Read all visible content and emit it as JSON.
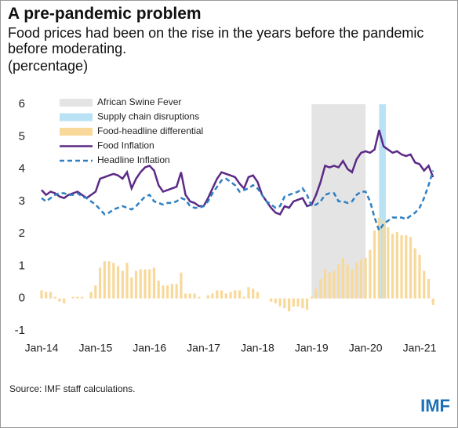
{
  "chart_data": {
    "type": "combo",
    "title": "A pre-pandemic problem",
    "subtitle": "Food prices had been on the rise in the years before the pandemic before moderating.",
    "y_label": "(percentage)",
    "source": "Source: IMF staff calculations.",
    "logo": "IMF",
    "categories": [
      "Jan-14",
      null,
      null,
      null,
      null,
      null,
      null,
      null,
      null,
      null,
      null,
      null,
      "Jan-15",
      null,
      null,
      null,
      null,
      null,
      null,
      null,
      null,
      null,
      null,
      null,
      "Jan-16",
      null,
      null,
      null,
      null,
      null,
      null,
      null,
      null,
      null,
      null,
      null,
      "Jan-17",
      null,
      null,
      null,
      null,
      null,
      null,
      null,
      null,
      null,
      null,
      null,
      "Jan-18",
      null,
      null,
      null,
      null,
      null,
      null,
      null,
      null,
      null,
      null,
      null,
      "Jan-19",
      null,
      null,
      null,
      null,
      null,
      null,
      null,
      null,
      null,
      null,
      null,
      "Jan-20",
      null,
      null,
      null,
      null,
      null,
      null,
      null,
      null,
      null,
      null,
      null,
      "Jan-21",
      null,
      null,
      null
    ],
    "ylim": [
      -1,
      6
    ],
    "yticks": [
      -1,
      0,
      1,
      2,
      3,
      4,
      5,
      6
    ],
    "spans": [
      {
        "name": "African Swine Fever",
        "color": "#e4e4e4",
        "start": 60,
        "end": 72
      },
      {
        "name": "Supply chain disruptions",
        "color": "#b9e3f5",
        "start": 75,
        "end": 76.5
      }
    ],
    "series": [
      {
        "name": "Food-headline differential",
        "type": "bar",
        "color": "#f9d99a",
        "values": [
          0.25,
          0.2,
          0.2,
          0.05,
          -0.1,
          -0.15,
          0,
          0.05,
          0.05,
          0.05,
          0,
          0.2,
          0.4,
          0.95,
          1.15,
          1.15,
          1.1,
          1.0,
          0.85,
          1.1,
          0.65,
          0.85,
          0.9,
          0.9,
          0.9,
          0.95,
          0.55,
          0.4,
          0.4,
          0.45,
          0.45,
          0.8,
          0.15,
          0.15,
          0.15,
          0.05,
          0,
          0.1,
          0.15,
          0.25,
          0.25,
          0.15,
          0.2,
          0.25,
          0.25,
          0.05,
          0.35,
          0.3,
          0.2,
          0,
          0,
          -0.1,
          -0.15,
          -0.25,
          -0.3,
          -0.4,
          -0.25,
          -0.25,
          -0.3,
          -0.35,
          0.05,
          0.3,
          0.6,
          0.9,
          0.8,
          0.85,
          1.05,
          1.25,
          1.05,
          0.9,
          1.1,
          1.2,
          1.25,
          1.5,
          2.1,
          2.5,
          2.4,
          2.2,
          2.0,
          2.05,
          1.95,
          1.95,
          1.9,
          1.55,
          1.35,
          0.85,
          0.6,
          -0.2
        ]
      },
      {
        "name": "Food Inflation",
        "type": "line",
        "color": "#5b2a86",
        "values": [
          3.35,
          3.2,
          3.3,
          3.25,
          3.15,
          3.1,
          3.2,
          3.25,
          3.3,
          3.2,
          3.1,
          3.2,
          3.3,
          3.7,
          3.75,
          3.8,
          3.85,
          3.8,
          3.7,
          3.9,
          3.4,
          3.7,
          3.9,
          4.05,
          4.1,
          3.95,
          3.5,
          3.3,
          3.35,
          3.4,
          3.45,
          3.9,
          3.2,
          3.0,
          2.95,
          2.85,
          2.85,
          3.1,
          3.4,
          3.7,
          3.9,
          3.85,
          3.8,
          3.75,
          3.55,
          3.4,
          3.75,
          3.8,
          3.6,
          3.2,
          3.0,
          2.8,
          2.65,
          2.6,
          2.85,
          2.8,
          3.0,
          3.05,
          3.1,
          2.85,
          2.9,
          3.2,
          3.6,
          4.1,
          4.05,
          4.1,
          4.05,
          4.25,
          4.0,
          3.9,
          4.3,
          4.5,
          4.55,
          4.5,
          4.6,
          5.2,
          4.7,
          4.6,
          4.5,
          4.55,
          4.45,
          4.4,
          4.45,
          4.2,
          4.15,
          3.95,
          4.1,
          3.75
        ]
      },
      {
        "name": "Headline Inflation",
        "type": "line",
        "dashed": true,
        "color": "#2f7fc1",
        "values": [
          3.1,
          3.0,
          3.1,
          3.2,
          3.25,
          3.25,
          3.2,
          3.2,
          3.25,
          3.15,
          3.1,
          3.0,
          2.9,
          2.75,
          2.6,
          2.65,
          2.75,
          2.8,
          2.85,
          2.8,
          2.75,
          2.85,
          3.0,
          3.15,
          3.2,
          3.0,
          2.95,
          2.9,
          2.95,
          2.95,
          3.0,
          3.1,
          3.05,
          2.85,
          2.8,
          2.8,
          2.85,
          3.0,
          3.25,
          3.45,
          3.65,
          3.7,
          3.6,
          3.5,
          3.3,
          3.35,
          3.4,
          3.5,
          3.4,
          3.2,
          3.0,
          2.9,
          2.8,
          2.85,
          3.15,
          3.2,
          3.25,
          3.3,
          3.4,
          3.2,
          2.85,
          2.9,
          3.0,
          3.2,
          3.25,
          3.25,
          3.0,
          3.0,
          2.95,
          3.0,
          3.2,
          3.3,
          3.3,
          3.0,
          2.5,
          2.1,
          2.3,
          2.4,
          2.5,
          2.5,
          2.5,
          2.45,
          2.55,
          2.65,
          2.8,
          3.1,
          3.5,
          3.95
        ]
      }
    ]
  }
}
